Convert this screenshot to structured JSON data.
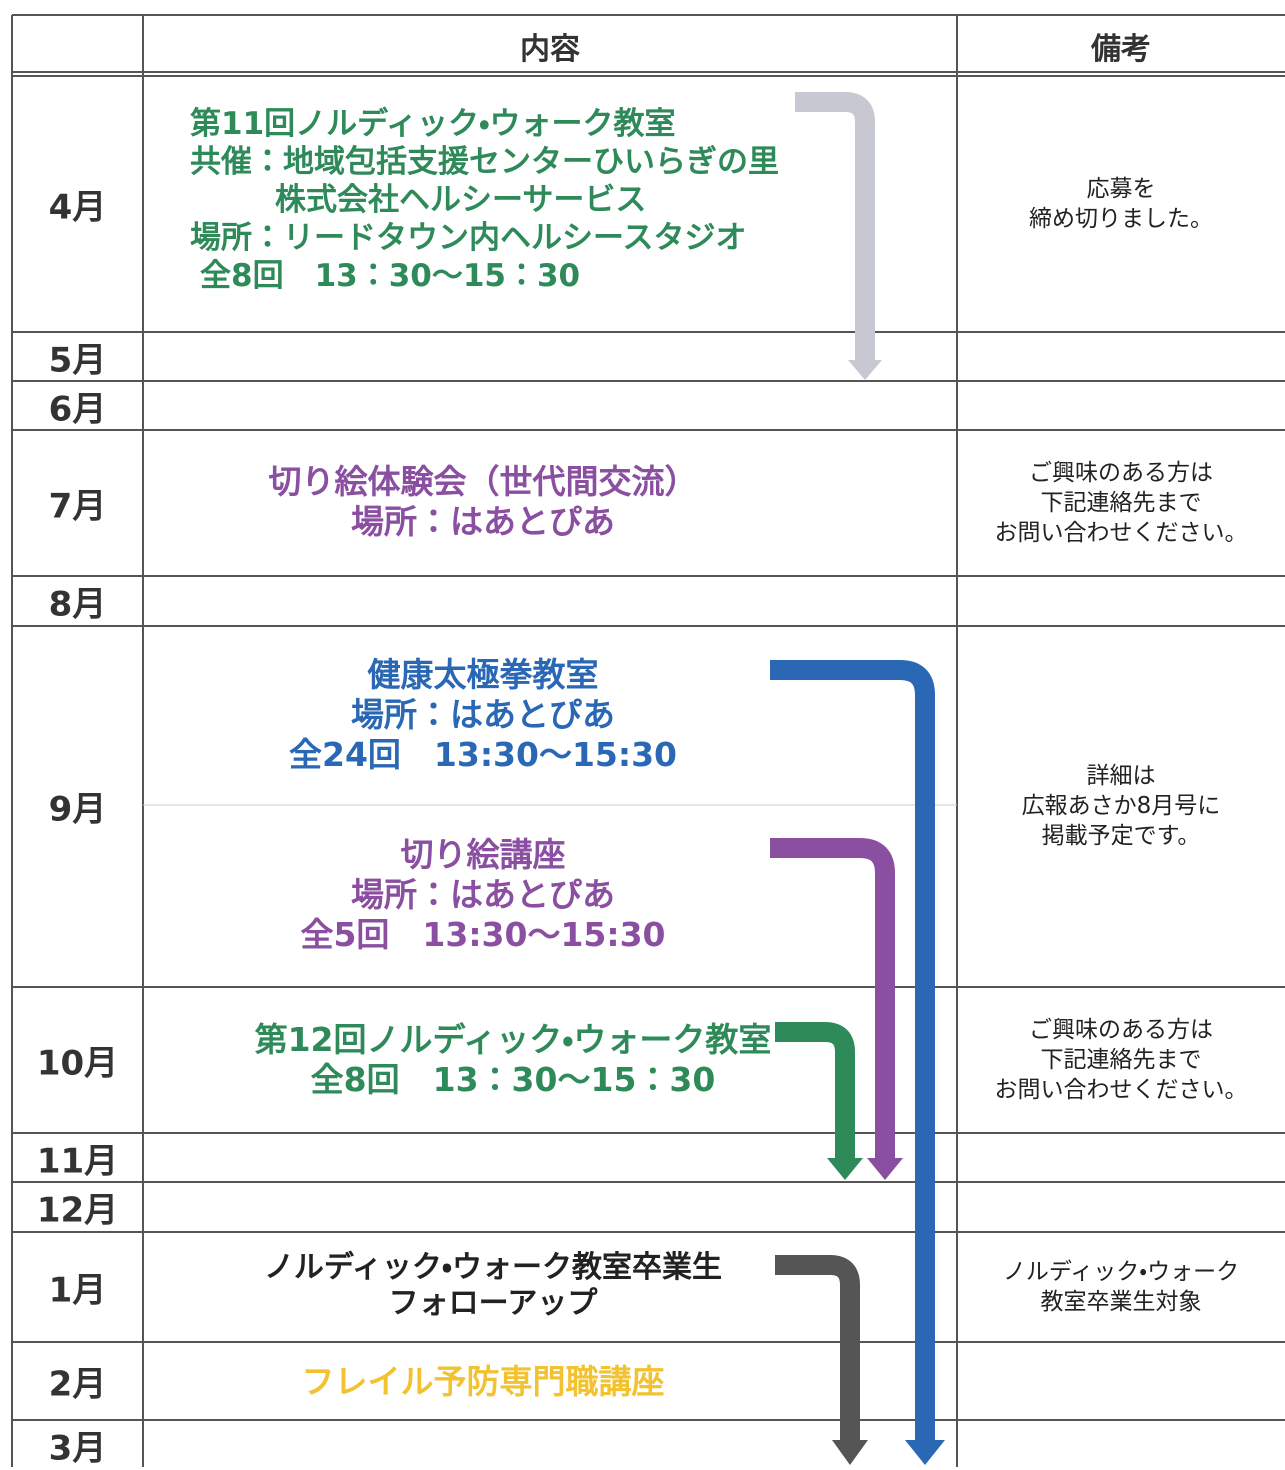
{
  "header": {
    "content": "内容",
    "notes": "備考"
  },
  "months": [
    "4月",
    "5月",
    "6月",
    "7月",
    "8月",
    "9月",
    "10月",
    "11月",
    "12月",
    "1月",
    "2月",
    "3月"
  ],
  "events": [
    {
      "lines": [
        "第11回ノルディック・ウォーク教室",
        "共催：地域包括支援センターひいらぎの里",
        "株式会社ヘルシーサービス",
        "場所：リードタウン内ヘルシースタジオ",
        "全8回　13：30～15：30"
      ]
    },
    {
      "lines": [
        "切り絵体験会（世代間交流）",
        "場所：はあとぴあ"
      ]
    },
    {
      "lines": [
        "健康太極拳教室",
        "場所：はあとぴあ",
        "全24回　13:30～15:30"
      ]
    },
    {
      "lines": [
        "切り絵講座",
        "場所：はあとぴあ",
        "全5回　13:30～15:30"
      ]
    },
    {
      "lines": [
        "第12回ノルディック・ウォーク教室",
        "全8回　13：30～15：30"
      ]
    },
    {
      "lines": [
        "ノルディック・ウォーク教室卒業生",
        "フォローアップ"
      ]
    },
    {
      "lines": [
        "フレイル予防専門職講座"
      ]
    }
  ],
  "notes": [
    {
      "lines": [
        "応募を",
        "締め切りました。"
      ]
    },
    {
      "lines": [
        "ご興味のある方は",
        "下記連絡先まで",
        "お問い合わせください。"
      ]
    },
    {
      "lines": [
        "詳細は",
        "広報あさか8月号に",
        "掲載予定です。"
      ]
    },
    {
      "lines": [
        "ご興味のある方は",
        "下記連絡先まで",
        "お問い合わせください。"
      ]
    },
    {
      "lines": [
        "ノルディック・ウォーク",
        "教室卒業生対象"
      ]
    }
  ]
}
